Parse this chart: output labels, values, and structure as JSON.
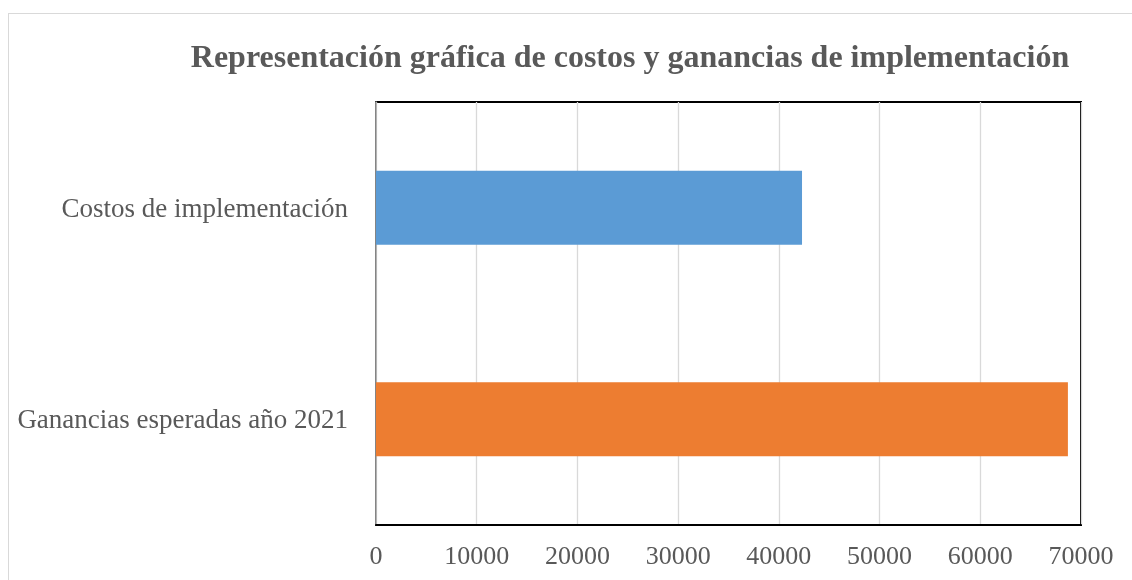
{
  "chart_data": {
    "type": "bar",
    "orientation": "horizontal",
    "title": "Representación gráfica de costos y ganancias de implementación",
    "categories": [
      "Costos de implementación",
      "Ganancias esperadas año 2021"
    ],
    "values": [
      42300,
      68700
    ],
    "colors": [
      "#5b9bd5",
      "#ed7d31"
    ],
    "xlim": [
      0,
      70000
    ],
    "xticks": [
      0,
      10000,
      20000,
      30000,
      40000,
      50000,
      60000,
      70000
    ],
    "grid": "x"
  }
}
